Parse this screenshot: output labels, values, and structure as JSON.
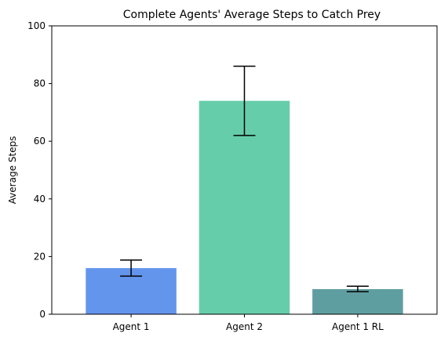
{
  "chart_data": {
    "type": "bar",
    "title": "Complete Agents' Average Steps to Catch Prey",
    "xlabel": "",
    "ylabel": "Average Steps",
    "categories": [
      "Agent 1",
      "Agent 2",
      "Agent 1 RL"
    ],
    "values": [
      16.0,
      74.0,
      8.7
    ],
    "error_bars": [
      {
        "low": 13.2,
        "high": 18.8
      },
      {
        "low": 62.0,
        "high": 86.0
      },
      {
        "low": 7.8,
        "high": 9.7
      }
    ],
    "colors": [
      "#6495ed",
      "#66cdaa",
      "#5f9ea0"
    ],
    "ylim": [
      0,
      100
    ],
    "yticks": [
      0,
      20,
      40,
      60,
      80,
      100
    ],
    "grid": false,
    "legend": "none"
  }
}
